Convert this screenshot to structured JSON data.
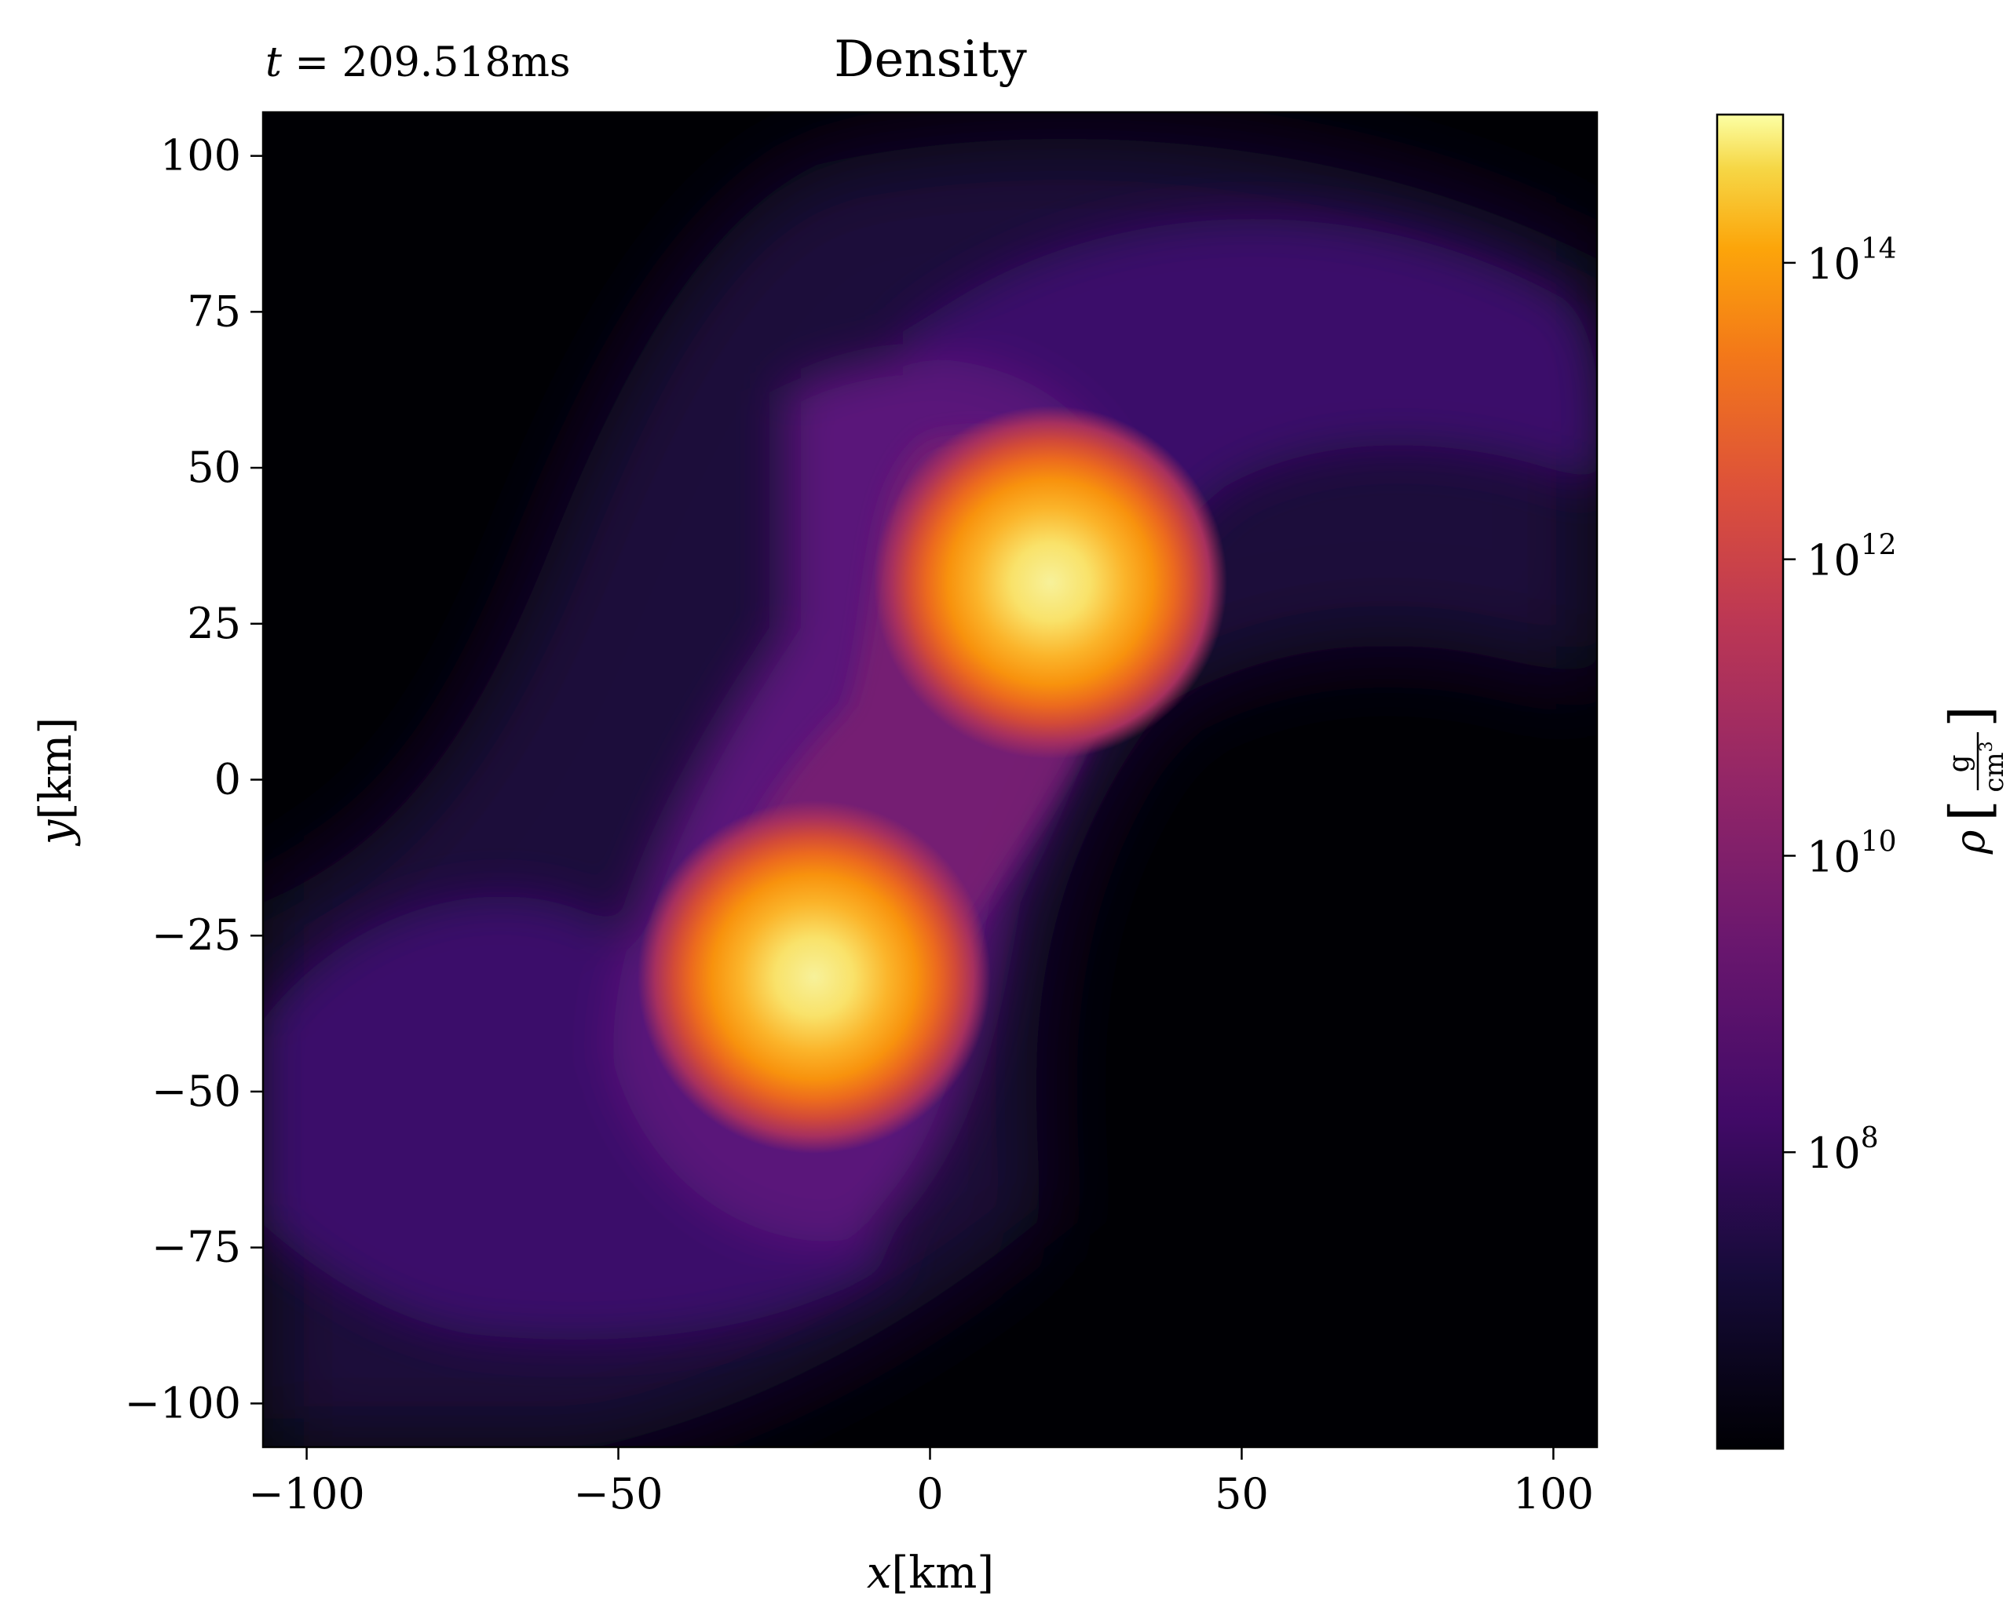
{
  "chart_data": {
    "type": "heatmap",
    "title": "Density",
    "time_label": {
      "prefix": "t",
      "eq": " = ",
      "value": "209.518ms"
    },
    "xlabel": {
      "var": "x",
      "unit": "[km]"
    },
    "ylabel": {
      "var": "y",
      "unit": "[km]"
    },
    "xlim": [
      -107,
      107
    ],
    "ylim": [
      -107,
      107
    ],
    "xticks": [
      -100,
      -50,
      0,
      50,
      100
    ],
    "yticks": [
      100,
      75,
      50,
      25,
      0,
      -25,
      -50,
      -75,
      -100
    ],
    "xtick_labels": [
      "−100",
      "−50",
      "0",
      "50",
      "100"
    ],
    "ytick_labels": [
      "100",
      "75",
      "50",
      "25",
      "0",
      "−25",
      "−50",
      "−75",
      "−100"
    ],
    "colormap": "inferno",
    "colorbar": {
      "scale": "log",
      "range": [
        1000000.0,
        1000000000000000.0
      ],
      "ticks": [
        {
          "value": 100000000.0,
          "base": "10",
          "exp": "8"
        },
        {
          "value": 10000000000.0,
          "base": "10",
          "exp": "10"
        },
        {
          "value": 1000000000000.0,
          "base": "10",
          "exp": "12"
        },
        {
          "value": 100000000000000.0,
          "base": "10",
          "exp": "14"
        }
      ],
      "label": {
        "var": "ρ",
        "num": "g",
        "den": "cm",
        "den_exp": "3"
      }
    },
    "features": [
      {
        "name": "star-upper",
        "x": 18,
        "y": 31,
        "peak": 1000000000000000.0,
        "radius_km": 18
      },
      {
        "name": "star-lower",
        "x": -19,
        "y": -31,
        "peak": 1000000000000000.0,
        "radius_km": 18
      }
    ],
    "colors": {
      "dark": "#000004",
      "purple": "#56106e",
      "magenta": "#bb3755",
      "orange": "#f98c0a",
      "yellow": "#fcffa4"
    }
  }
}
